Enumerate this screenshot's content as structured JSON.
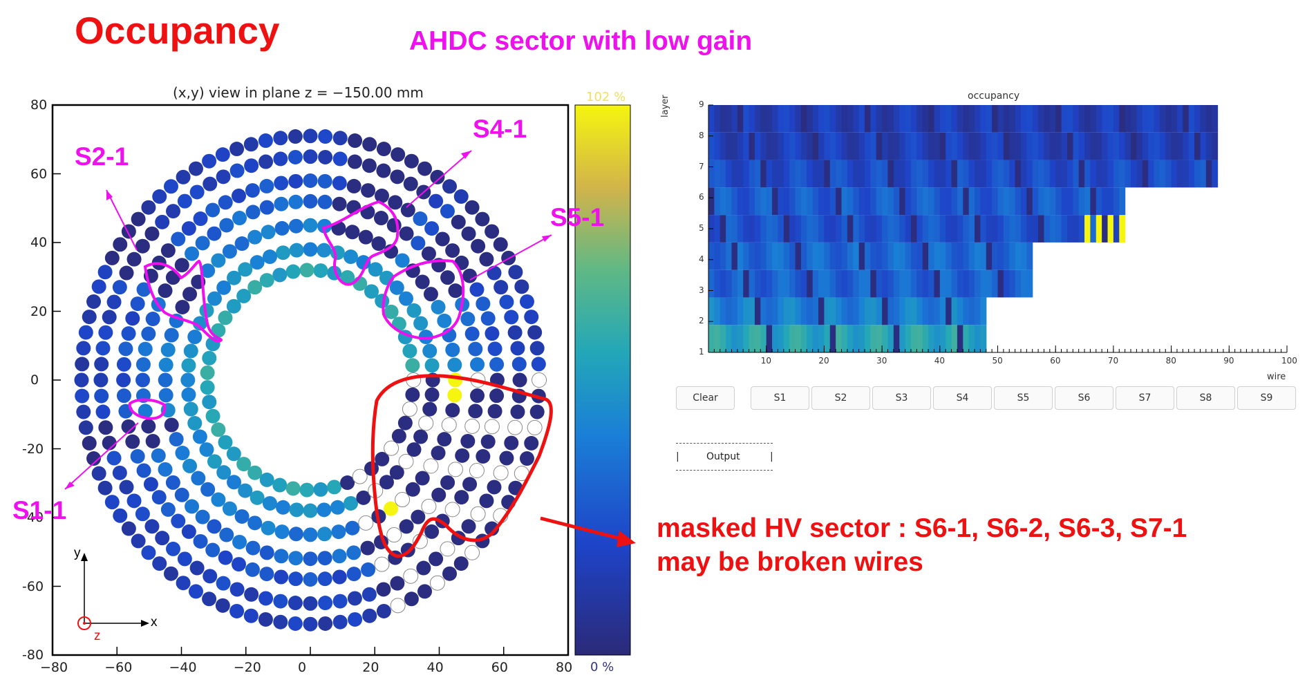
{
  "header": {
    "title": "Occupancy",
    "subtitle": "AHDC sector with low gain"
  },
  "xy_view": {
    "title": "(x,y) view in plane z = −150.00 mm",
    "x_ticks": [
      "−80",
      "−60",
      "−40",
      "−20",
      "0",
      "20",
      "40",
      "60",
      "80"
    ],
    "y_ticks": [
      "80",
      "60",
      "40",
      "20",
      "0",
      "-20",
      "-40",
      "-60",
      "-80"
    ],
    "colorbar_max": "102 %",
    "colorbar_min": "0 %",
    "axis_labels": {
      "x": "x",
      "y": "y",
      "z": "z"
    }
  },
  "annotations": {
    "sectors": [
      "S2-1",
      "S4-1",
      "S5-1",
      "S1-1"
    ],
    "masked_line1": "masked HV sector : S6-1, S6-2, S6-3, S7-1",
    "masked_line2": "may be broken wires",
    "colors": {
      "magenta": "#ee11ee",
      "red": "#ee1111"
    }
  },
  "occupancy_panel": {
    "title": "occupancy",
    "ylabel": "layer",
    "xlabel": "wire",
    "y_ticks": [
      "9",
      "8",
      "7",
      "6",
      "5",
      "4",
      "3",
      "2",
      "1"
    ],
    "x_ticks": [
      "10",
      "20",
      "30",
      "40",
      "50",
      "60",
      "70",
      "80",
      "90",
      "100"
    ]
  },
  "buttons": [
    "Clear",
    "S1",
    "S2",
    "S3",
    "S4",
    "S5",
    "S6",
    "S7",
    "S8",
    "S9"
  ],
  "output_panel": {
    "left": "|",
    "label": "Output",
    "right": "|"
  },
  "chart_data": [
    {
      "type": "scatter",
      "title": "(x,y) view in plane z = −150.00 mm",
      "xlim": [
        -80,
        80
      ],
      "ylim": [
        -80,
        80
      ],
      "note_scale": "occupancy 0 % to 102 %",
      "rings": [
        {
          "radius": 32,
          "count": 47,
          "value": 0.55
        },
        {
          "radius": 38,
          "count": 56,
          "value": 0.45
        },
        {
          "radius": 45,
          "count": 64,
          "value": 0.38
        },
        {
          "radius": 52,
          "count": 72,
          "value": 0.32
        },
        {
          "radius": 58,
          "count": 80,
          "value": 0.24
        },
        {
          "radius": 65,
          "count": 88,
          "value": 0.18
        },
        {
          "radius": 71,
          "count": 96,
          "value": 0.15
        }
      ],
      "low_gain_regions_deg": [
        [
          138,
          152
        ],
        [
          55,
          80
        ],
        [
          30,
          48
        ],
        [
          192,
          200
        ]
      ],
      "masked_region_deg": [
        -70,
        0
      ]
    },
    {
      "type": "heatmap",
      "title": "occupancy",
      "xlabel": "wire",
      "ylabel": "layer",
      "xlim": [
        0,
        100
      ],
      "ylim": [
        1,
        9
      ],
      "rows": [
        {
          "layer": 1,
          "wires": 48,
          "value": 0.55
        },
        {
          "layer": 2,
          "wires": 48,
          "value": 0.4
        },
        {
          "layer": 3,
          "wires": 56,
          "value": 0.3
        },
        {
          "layer": 4,
          "wires": 56,
          "value": 0.32
        },
        {
          "layer": 5,
          "wires": 72,
          "value": 0.25
        },
        {
          "layer": 6,
          "wires": 72,
          "value": 0.28
        },
        {
          "layer": 7,
          "wires": 88,
          "value": 0.22
        },
        {
          "layer": 8,
          "wires": 88,
          "value": 0.16
        },
        {
          "layer": 9,
          "wires": 88,
          "value": 0.15
        }
      ]
    }
  ]
}
